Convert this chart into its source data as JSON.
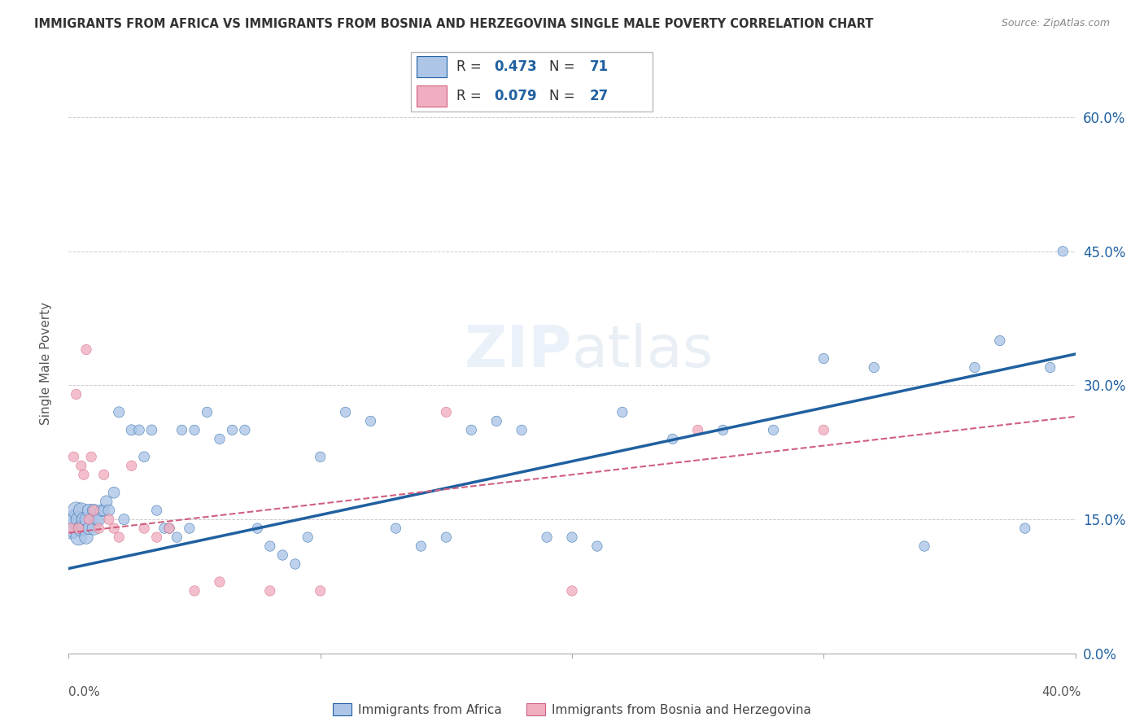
{
  "title": "IMMIGRANTS FROM AFRICA VS IMMIGRANTS FROM BOSNIA AND HERZEGOVINA SINGLE MALE POVERTY CORRELATION CHART",
  "source": "Source: ZipAtlas.com",
  "ylabel": "Single Male Poverty",
  "ytick_labels": [
    "0.0%",
    "15.0%",
    "30.0%",
    "45.0%",
    "60.0%"
  ],
  "ytick_values": [
    0.0,
    0.15,
    0.3,
    0.45,
    0.6
  ],
  "xlim": [
    0.0,
    0.4
  ],
  "ylim": [
    0.0,
    0.65
  ],
  "legend_label1": "Immigrants from Africa",
  "legend_label2": "Immigrants from Bosnia and Herzegovina",
  "R1": 0.473,
  "N1": 71,
  "R2": 0.079,
  "N2": 27,
  "color1": "#adc6e8",
  "color2": "#f0afc0",
  "line_color1": "#2060a0",
  "line_color2": "#d06080",
  "watermark": "ZIPatlas",
  "africa_x": [
    0.001,
    0.002,
    0.002,
    0.003,
    0.003,
    0.004,
    0.004,
    0.005,
    0.005,
    0.006,
    0.006,
    0.007,
    0.007,
    0.008,
    0.008,
    0.009,
    0.01,
    0.01,
    0.011,
    0.012,
    0.013,
    0.014,
    0.015,
    0.016,
    0.018,
    0.02,
    0.022,
    0.025,
    0.028,
    0.03,
    0.033,
    0.035,
    0.038,
    0.04,
    0.043,
    0.045,
    0.048,
    0.05,
    0.055,
    0.06,
    0.065,
    0.07,
    0.075,
    0.08,
    0.085,
    0.09,
    0.095,
    0.1,
    0.11,
    0.12,
    0.13,
    0.14,
    0.15,
    0.16,
    0.17,
    0.18,
    0.19,
    0.2,
    0.21,
    0.22,
    0.24,
    0.26,
    0.28,
    0.3,
    0.32,
    0.34,
    0.36,
    0.37,
    0.38,
    0.39,
    0.395
  ],
  "africa_y": [
    0.14,
    0.15,
    0.14,
    0.15,
    0.16,
    0.13,
    0.15,
    0.14,
    0.16,
    0.15,
    0.14,
    0.13,
    0.15,
    0.16,
    0.14,
    0.15,
    0.14,
    0.16,
    0.15,
    0.15,
    0.16,
    0.16,
    0.17,
    0.16,
    0.18,
    0.27,
    0.15,
    0.25,
    0.25,
    0.22,
    0.25,
    0.16,
    0.14,
    0.14,
    0.13,
    0.25,
    0.14,
    0.25,
    0.27,
    0.24,
    0.25,
    0.25,
    0.14,
    0.12,
    0.11,
    0.1,
    0.13,
    0.22,
    0.27,
    0.26,
    0.14,
    0.12,
    0.13,
    0.25,
    0.26,
    0.25,
    0.13,
    0.13,
    0.12,
    0.27,
    0.24,
    0.25,
    0.25,
    0.33,
    0.32,
    0.12,
    0.32,
    0.35,
    0.14,
    0.32,
    0.45
  ],
  "africa_size": [
    350,
    280,
    260,
    240,
    220,
    200,
    180,
    200,
    180,
    160,
    150,
    140,
    130,
    130,
    120,
    110,
    140,
    130,
    110,
    120,
    110,
    100,
    110,
    100,
    100,
    90,
    90,
    90,
    85,
    85,
    85,
    80,
    80,
    80,
    80,
    80,
    80,
    80,
    80,
    80,
    80,
    80,
    80,
    80,
    80,
    80,
    80,
    80,
    80,
    80,
    80,
    80,
    80,
    80,
    80,
    80,
    80,
    80,
    80,
    80,
    80,
    80,
    80,
    80,
    80,
    80,
    80,
    80,
    80,
    80,
    80
  ],
  "bosnia_x": [
    0.001,
    0.002,
    0.003,
    0.004,
    0.005,
    0.006,
    0.007,
    0.008,
    0.009,
    0.01,
    0.012,
    0.014,
    0.016,
    0.018,
    0.02,
    0.025,
    0.03,
    0.035,
    0.04,
    0.05,
    0.06,
    0.08,
    0.1,
    0.15,
    0.2,
    0.25,
    0.3
  ],
  "bosnia_y": [
    0.14,
    0.22,
    0.29,
    0.14,
    0.21,
    0.2,
    0.34,
    0.15,
    0.22,
    0.16,
    0.14,
    0.2,
    0.15,
    0.14,
    0.13,
    0.21,
    0.14,
    0.13,
    0.14,
    0.07,
    0.08,
    0.07,
    0.07,
    0.27,
    0.07,
    0.25,
    0.25
  ],
  "bosnia_size": [
    80,
    80,
    80,
    80,
    80,
    80,
    80,
    80,
    80,
    80,
    80,
    80,
    80,
    80,
    80,
    80,
    80,
    80,
    80,
    80,
    80,
    80,
    80,
    80,
    80,
    80,
    80
  ],
  "line1_x": [
    0.0,
    0.4
  ],
  "line1_y": [
    0.095,
    0.335
  ],
  "line2_x": [
    0.0,
    0.4
  ],
  "line2_y": [
    0.135,
    0.265
  ]
}
